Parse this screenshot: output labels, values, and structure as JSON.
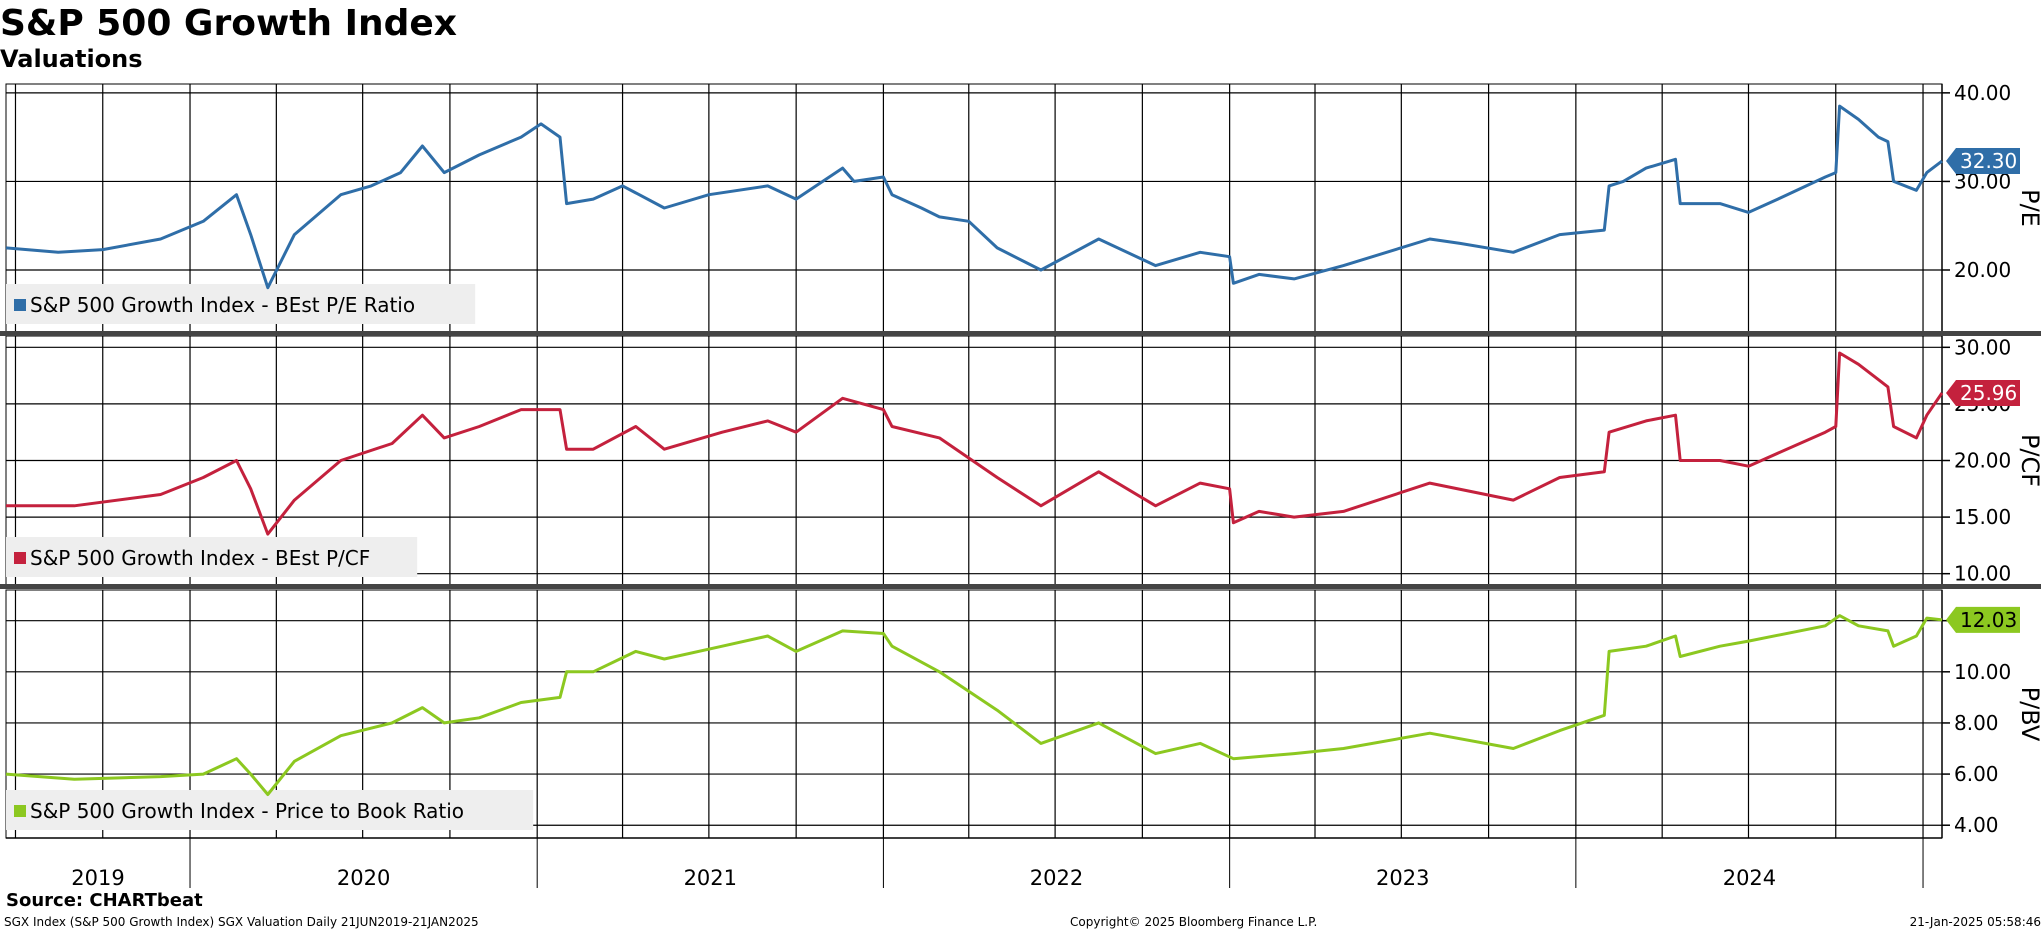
{
  "title": "S&P 500 Growth Index",
  "subtitle": "Valuations",
  "source": "Source: CHARTbeat",
  "footer": {
    "left": "SGX Index (S&P 500 Growth Index) SGX Valuation  Daily 21JUN2019-21JAN2025",
    "center": "Copyright© 2025 Bloomberg Finance L.P.",
    "right": "21-Jan-2025 05:58:46"
  },
  "chart_data": {
    "type": "line",
    "x_start": "2019-06-21",
    "x_end": "2025-01-21",
    "x_ticks": [
      "2019",
      "2020",
      "2021",
      "2022",
      "2023",
      "2024"
    ],
    "grid": true,
    "panels": [
      {
        "ylabel": "P/E",
        "ylim": [
          13,
          41
        ],
        "yticks": [
          "20.00",
          "30.00",
          "40.00"
        ],
        "legend": "S&P 500 Growth Index - BEst P/E Ratio",
        "color": "#2f6ea8",
        "last_value": "32.30",
        "points": [
          [
            "2019-06-21",
            22.5
          ],
          [
            "2019-08-15",
            22.0
          ],
          [
            "2019-10-01",
            22.3
          ],
          [
            "2019-12-01",
            23.5
          ],
          [
            "2020-01-15",
            25.5
          ],
          [
            "2020-02-19",
            28.5
          ],
          [
            "2020-03-05",
            24.0
          ],
          [
            "2020-03-23",
            18.0
          ],
          [
            "2020-04-20",
            24.0
          ],
          [
            "2020-06-08",
            28.5
          ],
          [
            "2020-07-10",
            29.5
          ],
          [
            "2020-08-10",
            31.0
          ],
          [
            "2020-09-02",
            34.0
          ],
          [
            "2020-09-25",
            31.0
          ],
          [
            "2020-11-01",
            33.0
          ],
          [
            "2020-12-15",
            35.0
          ],
          [
            "2021-01-05",
            36.5
          ],
          [
            "2021-01-25",
            35.0
          ],
          [
            "2021-02-01",
            27.5
          ],
          [
            "2021-03-01",
            28.0
          ],
          [
            "2021-04-01",
            29.5
          ],
          [
            "2021-05-15",
            27.0
          ],
          [
            "2021-07-01",
            28.5
          ],
          [
            "2021-09-01",
            29.5
          ],
          [
            "2021-10-01",
            28.0
          ],
          [
            "2021-11-19",
            31.5
          ],
          [
            "2021-12-01",
            30.0
          ],
          [
            "2022-01-01",
            30.5
          ],
          [
            "2022-01-10",
            28.5
          ],
          [
            "2022-02-10",
            27.0
          ],
          [
            "2022-03-01",
            26.0
          ],
          [
            "2022-04-01",
            25.5
          ],
          [
            "2022-05-01",
            22.5
          ],
          [
            "2022-06-16",
            20.0
          ],
          [
            "2022-08-16",
            23.5
          ],
          [
            "2022-10-15",
            20.5
          ],
          [
            "2022-12-01",
            22.0
          ],
          [
            "2023-01-01",
            21.5
          ],
          [
            "2023-01-05",
            18.5
          ],
          [
            "2023-02-01",
            19.5
          ],
          [
            "2023-03-10",
            19.0
          ],
          [
            "2023-05-01",
            20.5
          ],
          [
            "2023-07-31",
            23.5
          ],
          [
            "2023-09-01",
            23.0
          ],
          [
            "2023-10-27",
            22.0
          ],
          [
            "2023-12-15",
            24.0
          ],
          [
            "2024-01-31",
            24.5
          ],
          [
            "2024-02-05",
            29.5
          ],
          [
            "2024-02-20",
            30.0
          ],
          [
            "2024-03-15",
            31.5
          ],
          [
            "2024-04-15",
            32.5
          ],
          [
            "2024-04-20",
            27.5
          ],
          [
            "2024-06-01",
            27.5
          ],
          [
            "2024-07-01",
            26.5
          ],
          [
            "2024-08-01",
            28.0
          ],
          [
            "2024-09-20",
            30.5
          ],
          [
            "2024-10-01",
            31.0
          ],
          [
            "2024-10-05",
            38.5
          ],
          [
            "2024-10-25",
            37.0
          ],
          [
            "2024-11-15",
            35.0
          ],
          [
            "2024-11-25",
            34.5
          ],
          [
            "2024-12-01",
            30.0
          ],
          [
            "2024-12-25",
            29.0
          ],
          [
            "2025-01-05",
            31.0
          ],
          [
            "2025-01-21",
            32.3
          ]
        ]
      },
      {
        "ylabel": "P/CF",
        "ylim": [
          9,
          31
        ],
        "yticks": [
          "10.00",
          "15.00",
          "20.00",
          "25.00",
          "30.00"
        ],
        "legend": "S&P 500 Growth Index - BEst P/CF",
        "color": "#c4213d",
        "last_value": "25.96",
        "points": [
          [
            "2019-06-21",
            16.0
          ],
          [
            "2019-09-01",
            16.0
          ],
          [
            "2019-12-01",
            17.0
          ],
          [
            "2020-01-15",
            18.5
          ],
          [
            "2020-02-19",
            20.0
          ],
          [
            "2020-03-05",
            17.5
          ],
          [
            "2020-03-23",
            13.5
          ],
          [
            "2020-04-20",
            16.5
          ],
          [
            "2020-06-08",
            20.0
          ],
          [
            "2020-08-01",
            21.5
          ],
          [
            "2020-09-02",
            24.0
          ],
          [
            "2020-09-25",
            22.0
          ],
          [
            "2020-11-01",
            23.0
          ],
          [
            "2020-12-15",
            24.5
          ],
          [
            "2021-01-25",
            24.5
          ],
          [
            "2021-02-01",
            21.0
          ],
          [
            "2021-03-01",
            21.0
          ],
          [
            "2021-04-15",
            23.0
          ],
          [
            "2021-05-15",
            21.0
          ],
          [
            "2021-07-15",
            22.5
          ],
          [
            "2021-09-01",
            23.5
          ],
          [
            "2021-10-01",
            22.5
          ],
          [
            "2021-11-19",
            25.5
          ],
          [
            "2022-01-01",
            24.5
          ],
          [
            "2022-01-10",
            23.0
          ],
          [
            "2022-03-01",
            22.0
          ],
          [
            "2022-05-01",
            18.5
          ],
          [
            "2022-06-16",
            16.0
          ],
          [
            "2022-08-16",
            19.0
          ],
          [
            "2022-10-15",
            16.0
          ],
          [
            "2022-12-01",
            18.0
          ],
          [
            "2023-01-01",
            17.5
          ],
          [
            "2023-01-05",
            14.5
          ],
          [
            "2023-02-01",
            15.5
          ],
          [
            "2023-03-10",
            15.0
          ],
          [
            "2023-05-01",
            15.5
          ],
          [
            "2023-07-31",
            18.0
          ],
          [
            "2023-10-27",
            16.5
          ],
          [
            "2023-12-15",
            18.5
          ],
          [
            "2024-01-31",
            19.0
          ],
          [
            "2024-02-05",
            22.5
          ],
          [
            "2024-03-15",
            23.5
          ],
          [
            "2024-04-15",
            24.0
          ],
          [
            "2024-04-20",
            20.0
          ],
          [
            "2024-06-01",
            20.0
          ],
          [
            "2024-07-01",
            19.5
          ],
          [
            "2024-09-20",
            22.5
          ],
          [
            "2024-10-01",
            23.0
          ],
          [
            "2024-10-05",
            29.5
          ],
          [
            "2024-10-25",
            28.5
          ],
          [
            "2024-11-25",
            26.5
          ],
          [
            "2024-12-01",
            23.0
          ],
          [
            "2024-12-25",
            22.0
          ],
          [
            "2025-01-05",
            24.0
          ],
          [
            "2025-01-21",
            25.96
          ]
        ]
      },
      {
        "ylabel": "P/BV",
        "ylim": [
          3.5,
          13.2
        ],
        "yticks": [
          "4.00",
          "6.00",
          "8.00",
          "10.00",
          "12.00"
        ],
        "legend": "S&P 500 Growth Index - Price to Book Ratio",
        "color": "#8cc820",
        "last_value": "12.03",
        "points": [
          [
            "2019-06-21",
            6.0
          ],
          [
            "2019-09-01",
            5.8
          ],
          [
            "2019-12-01",
            5.9
          ],
          [
            "2020-01-15",
            6.0
          ],
          [
            "2020-02-19",
            6.6
          ],
          [
            "2020-03-05",
            6.0
          ],
          [
            "2020-03-23",
            5.2
          ],
          [
            "2020-04-20",
            6.5
          ],
          [
            "2020-06-08",
            7.5
          ],
          [
            "2020-08-01",
            8.0
          ],
          [
            "2020-09-02",
            8.6
          ],
          [
            "2020-09-25",
            8.0
          ],
          [
            "2020-11-01",
            8.2
          ],
          [
            "2020-12-15",
            8.8
          ],
          [
            "2021-01-25",
            9.0
          ],
          [
            "2021-02-01",
            10.0
          ],
          [
            "2021-03-01",
            10.0
          ],
          [
            "2021-04-15",
            10.8
          ],
          [
            "2021-05-15",
            10.5
          ],
          [
            "2021-07-15",
            11.0
          ],
          [
            "2021-09-01",
            11.4
          ],
          [
            "2021-10-01",
            10.8
          ],
          [
            "2021-11-19",
            11.6
          ],
          [
            "2022-01-01",
            11.5
          ],
          [
            "2022-01-10",
            11.0
          ],
          [
            "2022-03-01",
            10.0
          ],
          [
            "2022-05-01",
            8.5
          ],
          [
            "2022-06-16",
            7.2
          ],
          [
            "2022-08-16",
            8.0
          ],
          [
            "2022-10-15",
            6.8
          ],
          [
            "2022-12-01",
            7.2
          ],
          [
            "2023-01-05",
            6.6
          ],
          [
            "2023-03-10",
            6.8
          ],
          [
            "2023-05-01",
            7.0
          ],
          [
            "2023-07-31",
            7.6
          ],
          [
            "2023-10-27",
            7.0
          ],
          [
            "2023-12-15",
            7.7
          ],
          [
            "2024-01-31",
            8.3
          ],
          [
            "2024-02-05",
            10.8
          ],
          [
            "2024-03-15",
            11.0
          ],
          [
            "2024-04-15",
            11.4
          ],
          [
            "2024-04-20",
            10.6
          ],
          [
            "2024-06-01",
            11.0
          ],
          [
            "2024-07-01",
            11.2
          ],
          [
            "2024-09-20",
            11.8
          ],
          [
            "2024-10-05",
            12.2
          ],
          [
            "2024-10-25",
            11.8
          ],
          [
            "2024-11-25",
            11.6
          ],
          [
            "2024-12-01",
            11.0
          ],
          [
            "2024-12-25",
            11.4
          ],
          [
            "2025-01-05",
            12.1
          ],
          [
            "2025-01-21",
            12.03
          ]
        ]
      }
    ]
  }
}
